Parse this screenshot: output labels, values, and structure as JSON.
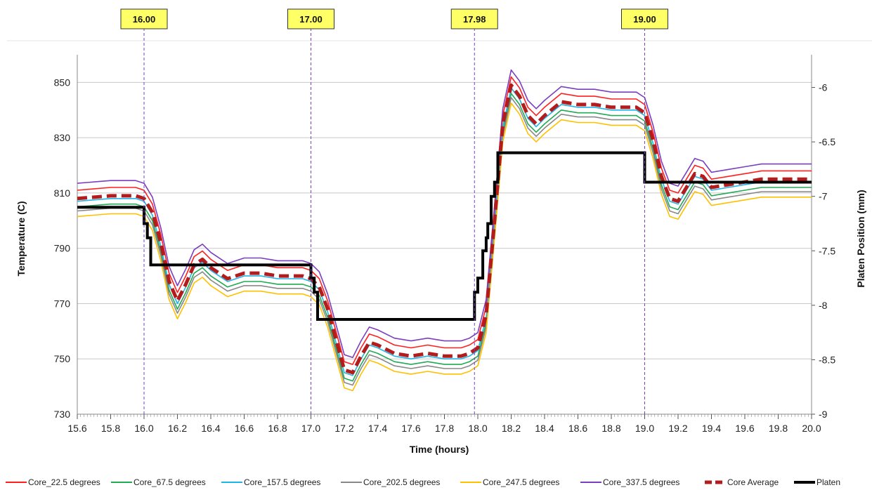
{
  "chart_data": {
    "type": "line",
    "xlabel": "Time (hours)",
    "ylabel": "Temperature (C)",
    "y2label": "Platen Position (mm)",
    "xlim": [
      15.6,
      20.0
    ],
    "ylim": [
      730,
      860
    ],
    "y2lim": [
      -9,
      -5.7
    ],
    "x_ticks": [
      "15.6",
      "15.8",
      "16.0",
      "16.2",
      "16.4",
      "16.6",
      "16.8",
      "17.0",
      "17.2",
      "17.4",
      "17.6",
      "17.8",
      "18.0",
      "18.2",
      "18.4",
      "18.6",
      "18.8",
      "19.0",
      "19.2",
      "19.4",
      "19.6",
      "19.8",
      "20.0"
    ],
    "y_ticks": [
      "730",
      "750",
      "770",
      "790",
      "810",
      "830",
      "850"
    ],
    "y2_ticks": [
      "-9",
      "-8.5",
      "-8",
      "-7.5",
      "-7",
      "-6.5",
      "-6"
    ],
    "markers": [
      {
        "x": 16.0,
        "label": "16.00"
      },
      {
        "x": 17.0,
        "label": "17.00"
      },
      {
        "x": 17.98,
        "label": "17.98"
      },
      {
        "x": 19.0,
        "label": "19.00"
      }
    ],
    "grid": "horizontal",
    "legend_position": "bottom",
    "series": [
      {
        "name": "Core_22.5 degrees",
        "color": "#ff1f1f",
        "offset": 3
      },
      {
        "name": "Core_67.5 degrees",
        "color": "#22aa55",
        "offset": -3
      },
      {
        "name": "Core_157.5 degrees",
        "color": "#22b5e8",
        "offset": -1
      },
      {
        "name": "Core_202.5 degrees",
        "color": "#888888",
        "offset": -4.5
      },
      {
        "name": "Core_247.5 degrees",
        "color": "#ffc000",
        "offset": -6.5
      },
      {
        "name": "Core_337.5 degrees",
        "color": "#7a3fc0",
        "offset": 5.5
      },
      {
        "name": "Core Average",
        "color": "#b21c1c",
        "offset": 0
      },
      {
        "name": "Platen",
        "color": "#000000",
        "offset": 0
      }
    ],
    "core_average": {
      "x": [
        15.6,
        15.8,
        15.95,
        16.0,
        16.05,
        16.1,
        16.15,
        16.2,
        16.25,
        16.3,
        16.35,
        16.4,
        16.5,
        16.6,
        16.7,
        16.8,
        16.9,
        16.95,
        17.0,
        17.05,
        17.1,
        17.15,
        17.2,
        17.25,
        17.3,
        17.35,
        17.4,
        17.5,
        17.6,
        17.7,
        17.8,
        17.9,
        17.95,
        18.0,
        18.05,
        18.1,
        18.15,
        18.2,
        18.25,
        18.3,
        18.35,
        18.4,
        18.5,
        18.6,
        18.7,
        18.8,
        18.9,
        18.95,
        19.0,
        19.05,
        19.1,
        19.15,
        19.2,
        19.25,
        19.3,
        19.35,
        19.4,
        19.5,
        19.6,
        19.7,
        19.8,
        19.9,
        20.0
      ],
      "y": [
        808,
        809,
        809,
        808,
        803,
        792,
        778,
        771,
        777,
        784,
        786,
        783,
        779,
        781,
        781,
        780,
        780,
        780,
        779,
        776,
        768,
        757,
        746,
        745,
        751,
        756,
        755,
        752,
        751,
        752,
        751,
        751,
        752,
        754,
        766,
        800,
        835,
        849,
        845,
        838,
        835,
        838,
        843,
        842,
        842,
        841,
        841,
        841,
        839,
        829,
        816,
        808,
        807,
        812,
        817,
        816,
        812,
        813,
        814,
        815,
        815,
        815,
        815
      ]
    },
    "platen": {
      "x": [
        15.6,
        16.0,
        16.0,
        16.02,
        16.02,
        16.04,
        16.04,
        17.0,
        17.0,
        17.02,
        17.02,
        17.04,
        17.04,
        17.98,
        17.98,
        18.0,
        18.0,
        18.03,
        18.03,
        18.05,
        18.05,
        18.06,
        18.06,
        18.08,
        18.08,
        18.1,
        18.1,
        18.12,
        18.12,
        19.0,
        19.0,
        20.0
      ],
      "y": [
        -7.1,
        -7.1,
        -7.25,
        -7.25,
        -7.38,
        -7.38,
        -7.63,
        -7.63,
        -7.75,
        -7.75,
        -7.88,
        -7.88,
        -8.13,
        -8.13,
        -7.88,
        -7.88,
        -7.75,
        -7.75,
        -7.5,
        -7.5,
        -7.38,
        -7.38,
        -7.25,
        -7.25,
        -7.0,
        -7.0,
        -6.87,
        -6.87,
        -6.6,
        -6.6,
        -6.87,
        -6.87
      ]
    }
  }
}
